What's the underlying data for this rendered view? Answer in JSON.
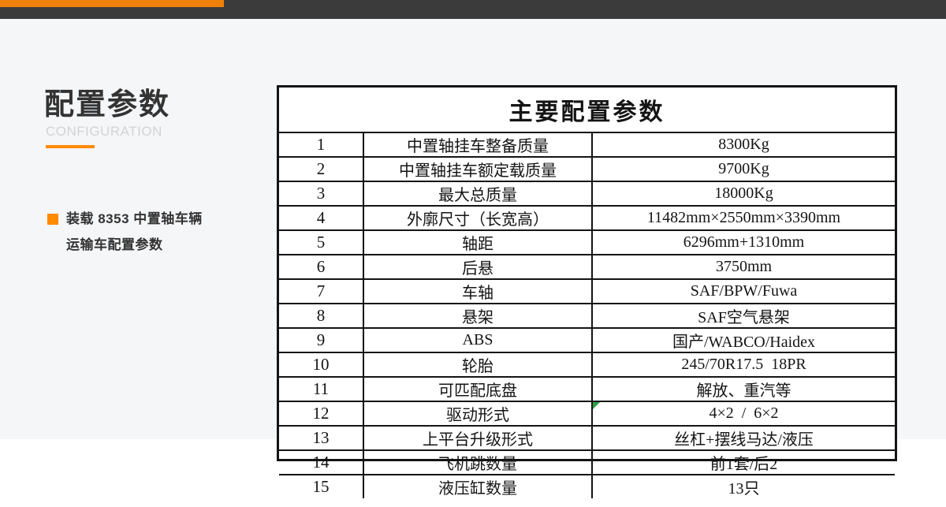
{
  "colors": {
    "brand_orange": "#ef8009",
    "accent_orange": "#ff8a00",
    "dark_bar": "#3b3b3b",
    "page_background": "#f5f6f8",
    "table_border": "#141414",
    "green_corner_marker": "#2f9e44"
  },
  "sidebar": {
    "title": "配置参数",
    "subtitle": "CONFIGURATION",
    "note_line1": "装载 8353 中置轴车辆",
    "note_line2": "运输车配置参数"
  },
  "table": {
    "title": "主要配置参数",
    "green_corner_marker_row": 12,
    "rows": [
      {
        "no": "1",
        "name": "中置轴挂车整备质量",
        "value": "8300Kg"
      },
      {
        "no": "2",
        "name": "中置轴挂车额定载质量",
        "value": "9700Kg"
      },
      {
        "no": "3",
        "name": "最大总质量",
        "value": "18000Kg"
      },
      {
        "no": "4",
        "name": "外廓尺寸（长宽高）",
        "value": "11482mm×2550mm×3390mm"
      },
      {
        "no": "5",
        "name": "轴距",
        "value": "6296mm+1310mm"
      },
      {
        "no": "6",
        "name": "后悬",
        "value": "3750mm"
      },
      {
        "no": "7",
        "name": "车轴",
        "value": "SAF/BPW/Fuwa"
      },
      {
        "no": "8",
        "name": "悬架",
        "value": "SAF空气悬架"
      },
      {
        "no": "9",
        "name": "ABS",
        "value": "国产/WABCO/Haidex"
      },
      {
        "no": "10",
        "name": "轮胎",
        "value": "245/70R17.5  18PR"
      },
      {
        "no": "11",
        "name": "可匹配底盘",
        "value": "解放、重汽等"
      },
      {
        "no": "12",
        "name": "驱动形式",
        "value": "4×2  /  6×2"
      },
      {
        "no": "13",
        "name": "上平台升级形式",
        "value": "丝杠+摆线马达/液压"
      },
      {
        "no": "14",
        "name": "飞机跳数量",
        "value": "前1套/后2"
      },
      {
        "no": "15",
        "name": "液压缸数量",
        "value": "13只"
      }
    ]
  }
}
